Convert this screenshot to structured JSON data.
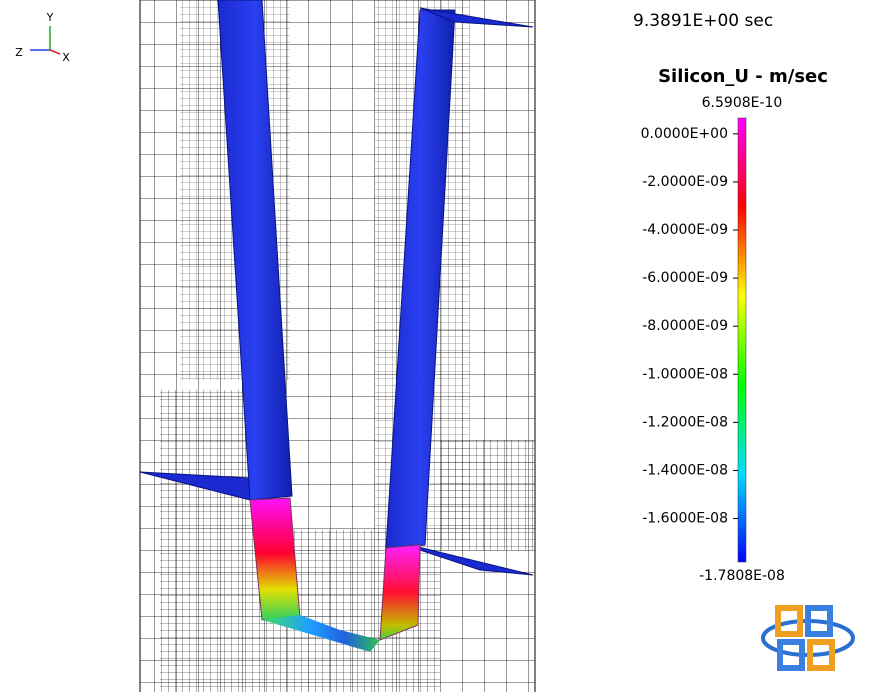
{
  "triad": {
    "y": "Y",
    "z": "Z",
    "x": "X"
  },
  "time": "9.3891E+00 sec",
  "colorbar": {
    "title": "Silicon_U -  m/sec",
    "max": {
      "value": 6.5908e-10,
      "label": "6.5908E-10"
    },
    "min": {
      "value": -1.7808e-08,
      "label": "-1.7808E-08"
    },
    "ticks": [
      {
        "value": 0,
        "label": "0.0000E+00"
      },
      {
        "value": -2e-09,
        "label": "-2.0000E-09"
      },
      {
        "value": -4e-09,
        "label": "-4.0000E-09"
      },
      {
        "value": -6e-09,
        "label": "-6.0000E-09"
      },
      {
        "value": -8e-09,
        "label": "-8.0000E-09"
      },
      {
        "value": -1e-08,
        "label": "-1.0000E-08"
      },
      {
        "value": -1.2e-08,
        "label": "-1.2000E-08"
      },
      {
        "value": -1.4e-08,
        "label": "-1.4000E-08"
      },
      {
        "value": -1.6e-08,
        "label": "-1.6000E-08"
      }
    ]
  }
}
